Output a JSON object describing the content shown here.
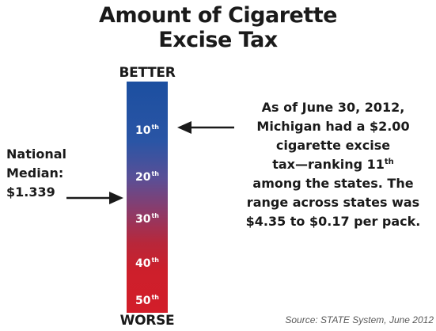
{
  "title": {
    "line1": "Amount of Cigarette",
    "line2": "Excise Tax"
  },
  "scale": {
    "top_label": "BETTER",
    "bottom_label": "WORSE",
    "ranks": [
      {
        "num": "10",
        "suffix": "th"
      },
      {
        "num": "20",
        "suffix": "th"
      },
      {
        "num": "30",
        "suffix": "th"
      },
      {
        "num": "40",
        "suffix": "th"
      },
      {
        "num": "50",
        "suffix": "th"
      }
    ],
    "colors": {
      "top": "#1c4fa0",
      "bottom": "#d21e2a"
    }
  },
  "median_note": {
    "line1": "National",
    "line2": "Median:",
    "value": "$1.339"
  },
  "michigan_note": {
    "line1": "As of June 30, 2012,",
    "line2": "Michigan had a $2.00",
    "line3": "cigarette excise",
    "line4_text": "tax—ranking 11",
    "line4_sup": "th",
    "line5": "among the states. The",
    "line6": "range across states was",
    "line7": "$4.35 to $0.17 per pack."
  },
  "source": "Source: STATE System, June 2012",
  "icons": {
    "median_arrow": "arrow-right-icon",
    "michigan_arrow": "arrow-left-icon"
  }
}
